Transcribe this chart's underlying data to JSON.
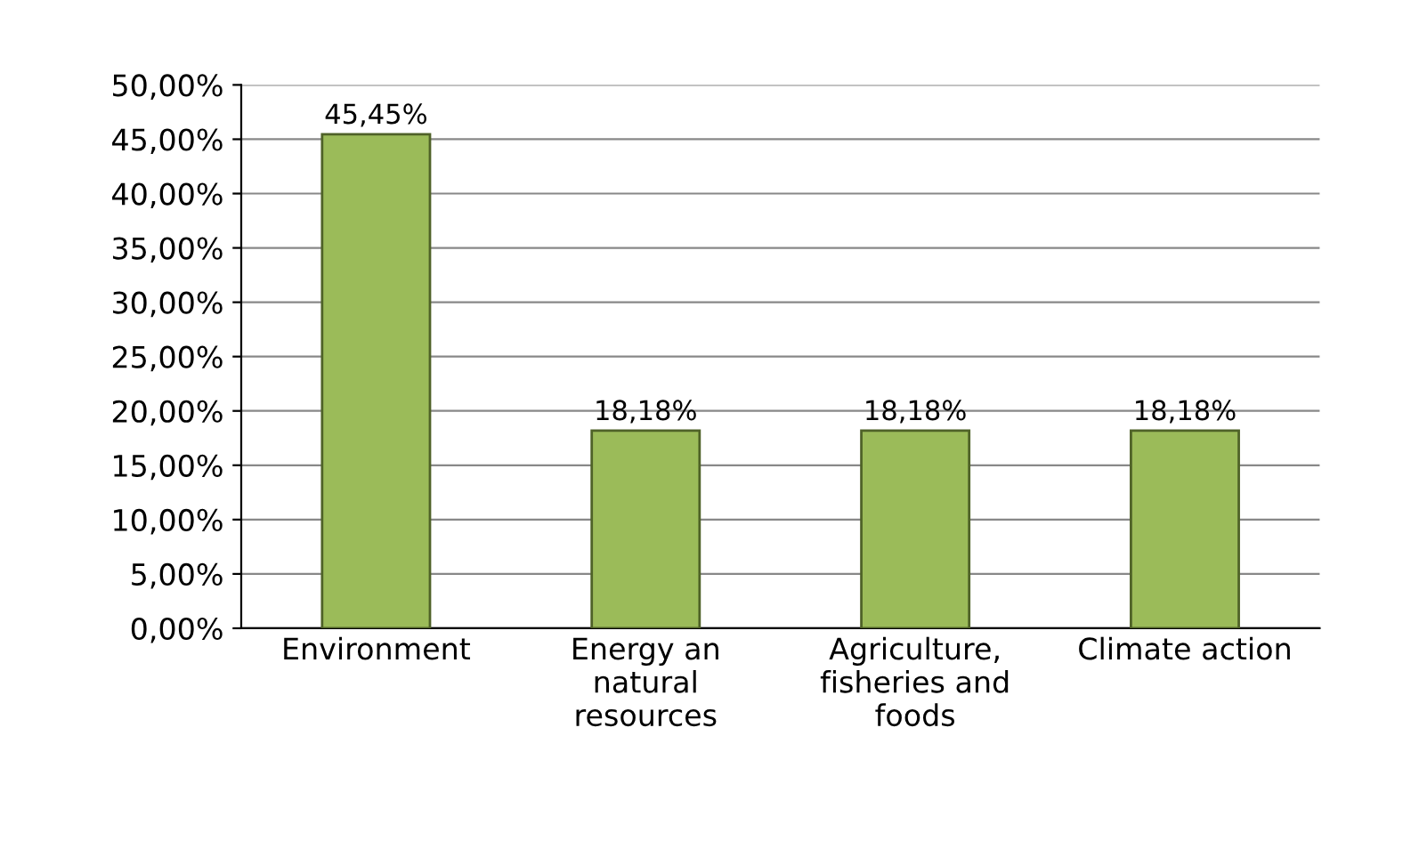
{
  "chart_data": {
    "type": "bar",
    "categories": [
      "Environment",
      "Energy an\nnatural\nresources",
      "Agriculture,\nfisheries and\nfoods",
      "Climate action"
    ],
    "values": [
      45.45,
      18.18,
      18.18,
      18.18
    ],
    "value_labels": [
      "45,45%",
      "18,18%",
      "18,18%",
      "18,18%"
    ],
    "color": "#9bbb59",
    "ylim": [
      0,
      50
    ],
    "yticks": [
      {
        "value": 0,
        "label": "0,00%"
      },
      {
        "value": 5,
        "label": "5,00%"
      },
      {
        "value": 10,
        "label": "10,00%"
      },
      {
        "value": 15,
        "label": "15,00%"
      },
      {
        "value": 20,
        "label": "20,00%"
      },
      {
        "value": 25,
        "label": "25,00%"
      },
      {
        "value": 30,
        "label": "30,00%"
      },
      {
        "value": 35,
        "label": "35,00%"
      },
      {
        "value": 40,
        "label": "40,00%"
      },
      {
        "value": 45,
        "label": "45,00%"
      },
      {
        "value": 50,
        "label": "50,00%"
      }
    ],
    "grid": "y"
  }
}
